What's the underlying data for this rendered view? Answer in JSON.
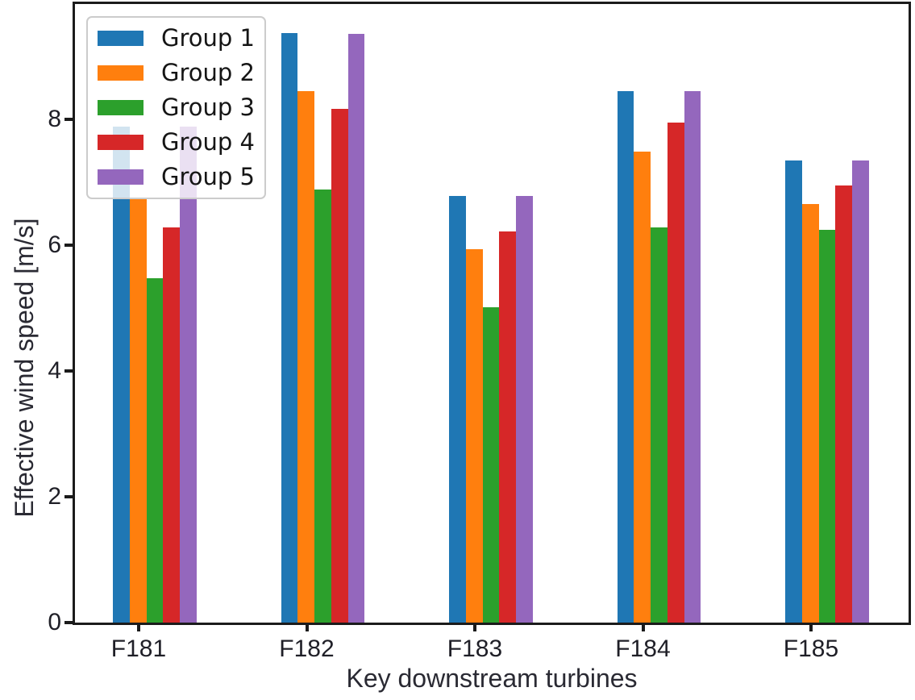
{
  "figure": {
    "background": "#ffffff",
    "frame_color": "#1b1b1b",
    "text_color": "#2a2a33"
  },
  "chart_data": {
    "type": "bar",
    "title": "",
    "xlabel": "Key downstream turbines",
    "ylabel": "Effective wind speed [m/s]",
    "categories": [
      "F181",
      "F182",
      "F183",
      "F184",
      "F185"
    ],
    "series": [
      {
        "name": "Group 1",
        "color": "#1f77b4",
        "values": [
          7.88,
          9.37,
          6.78,
          8.45,
          7.35
        ]
      },
      {
        "name": "Group 2",
        "color": "#ff7f0e",
        "values": [
          6.74,
          8.44,
          5.94,
          7.49,
          6.65
        ]
      },
      {
        "name": "Group 3",
        "color": "#2ca02c",
        "values": [
          5.47,
          6.88,
          5.01,
          6.28,
          6.24
        ]
      },
      {
        "name": "Group 4",
        "color": "#d62728",
        "values": [
          6.28,
          8.17,
          6.22,
          7.94,
          6.95
        ]
      },
      {
        "name": "Group 5",
        "color": "#9467bd",
        "values": [
          7.88,
          9.36,
          6.78,
          8.45,
          7.35
        ]
      }
    ],
    "ylim": [
      0,
      9.83
    ],
    "yticks": [
      0,
      2,
      4,
      6,
      8
    ],
    "grid": false,
    "legend_position": "upper left"
  }
}
